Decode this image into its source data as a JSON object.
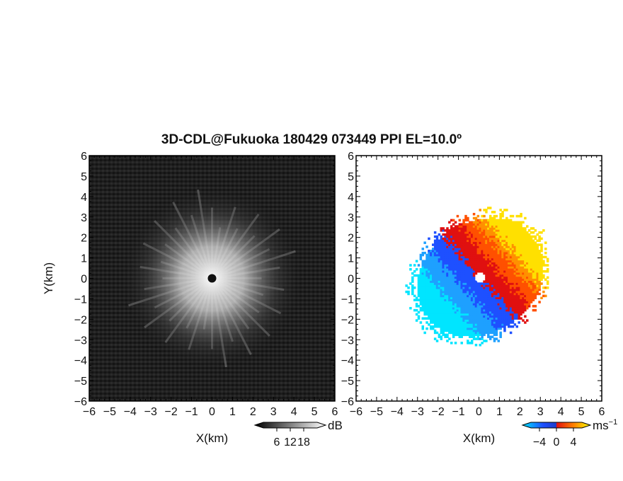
{
  "title": "3D-CDL@Fukuoka 180429 073449 PPI EL=10.0º",
  "chart_data": [
    {
      "type": "heatmap",
      "panel": "left",
      "quantity": "reflectivity",
      "xlabel": "X(km)",
      "ylabel": "Y(km)",
      "xlim": [
        -6,
        6
      ],
      "ylim": [
        -6,
        6
      ],
      "xticks": [
        "−6",
        "−5",
        "−4",
        "−3",
        "−2",
        "−1",
        "0",
        "1",
        "2",
        "3",
        "4",
        "5",
        "6"
      ],
      "yticks": [
        "6",
        "5",
        "4",
        "3",
        "2",
        "1",
        "0",
        "−1",
        "−2",
        "−3",
        "−4",
        "−5",
        "−6"
      ],
      "colorbar": {
        "unit": "dB",
        "ticks": [
          "6",
          "12",
          "18"
        ],
        "tick_values": [
          6,
          12,
          18
        ],
        "range": [
          0,
          24
        ],
        "colors": [
          "#000000",
          "#ffffff"
        ]
      }
    },
    {
      "type": "heatmap",
      "panel": "right",
      "quantity": "doppler velocity",
      "xlabel": "X(km)",
      "xlim": [
        -6,
        6
      ],
      "ylim": [
        -6,
        6
      ],
      "xticks": [
        "−6",
        "−5",
        "−4",
        "−3",
        "−2",
        "−1",
        "0",
        "1",
        "2",
        "3",
        "4",
        "5",
        "6"
      ],
      "yticks": [
        "6",
        "5",
        "4",
        "3",
        "2",
        "1",
        "0",
        "−1",
        "−2",
        "−3",
        "−4",
        "−5",
        "−6"
      ],
      "colorbar": {
        "unit": "ms",
        "unit_exp": "−1",
        "ticks": [
          "−4",
          "0",
          "4"
        ],
        "tick_values": [
          -4,
          0,
          4
        ],
        "range": [
          -6,
          6
        ],
        "colors": [
          "#00e5ff",
          "#1e50ff",
          "#e01010",
          "#ff8000",
          "#ffff00"
        ]
      }
    }
  ]
}
